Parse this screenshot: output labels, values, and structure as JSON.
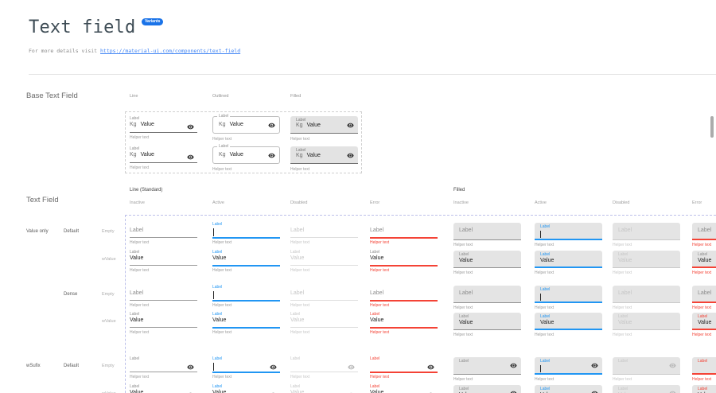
{
  "header": {
    "title": "Text field",
    "badge": "Variants",
    "subtitle_prefix": "For more details visit",
    "subtitle_link": "https://material-ui.com/components/text-field"
  },
  "base_section": {
    "heading": "Base Text Field",
    "columns": [
      "Line",
      "Outlined",
      "Filled"
    ],
    "field": {
      "label": "Label",
      "prefix": "Kg",
      "value": "Value",
      "helper": "Helper text"
    }
  },
  "matrix": {
    "heading": "Text Field",
    "groups": [
      {
        "label": "Line (Standard)",
        "variant": "line",
        "states": [
          "Inactive",
          "Active",
          "Disabled",
          "Error"
        ]
      },
      {
        "label": "Filled",
        "variant": "filled",
        "states": [
          "Inactive",
          "Active",
          "Disabled",
          "Error"
        ]
      }
    ],
    "cell_text": {
      "label": "Label",
      "value": "Value",
      "helper": "Helper text"
    },
    "rows": [
      {
        "category": "Value only",
        "size": "Default",
        "state_label": "Empty",
        "content": "empty",
        "suffix": false,
        "error_label_red": false
      },
      {
        "category": "",
        "size": "",
        "state_label": "wValue",
        "content": "value",
        "suffix": false,
        "error_label_red": false
      },
      {
        "category": "",
        "size": "Dense",
        "state_label": "Empty",
        "content": "empty",
        "suffix": false,
        "error_label_red": false
      },
      {
        "category": "",
        "size": "",
        "state_label": "wValue",
        "content": "value",
        "suffix": false,
        "error_label_red": true
      },
      {
        "category": "wSufix",
        "size": "Default",
        "state_label": "Empty",
        "content": "empty",
        "suffix": true,
        "error_label_red": true
      },
      {
        "category": "",
        "size": "",
        "state_label": "wValue",
        "content": "value",
        "suffix": true,
        "error_label_red": true
      }
    ]
  },
  "colors": {
    "badge_blue": "#1a73e8",
    "link_blue": "#4285f4",
    "accent_blue": "#2196f3",
    "error_red": "#f44336",
    "text_dark": "#222222",
    "label_grey": "#8d8d8d",
    "helper_grey": "#9b9b9b",
    "disabled_grey": "#c6c6c6",
    "disabled_line": "#dedede",
    "filled_bg": "#e4e4e4",
    "underline_dark": "#6f6f6f",
    "outline_border": "#bdbdbd",
    "icon_dark": "#3a3a3a",
    "icon_disabled": "#b9b9b9"
  }
}
